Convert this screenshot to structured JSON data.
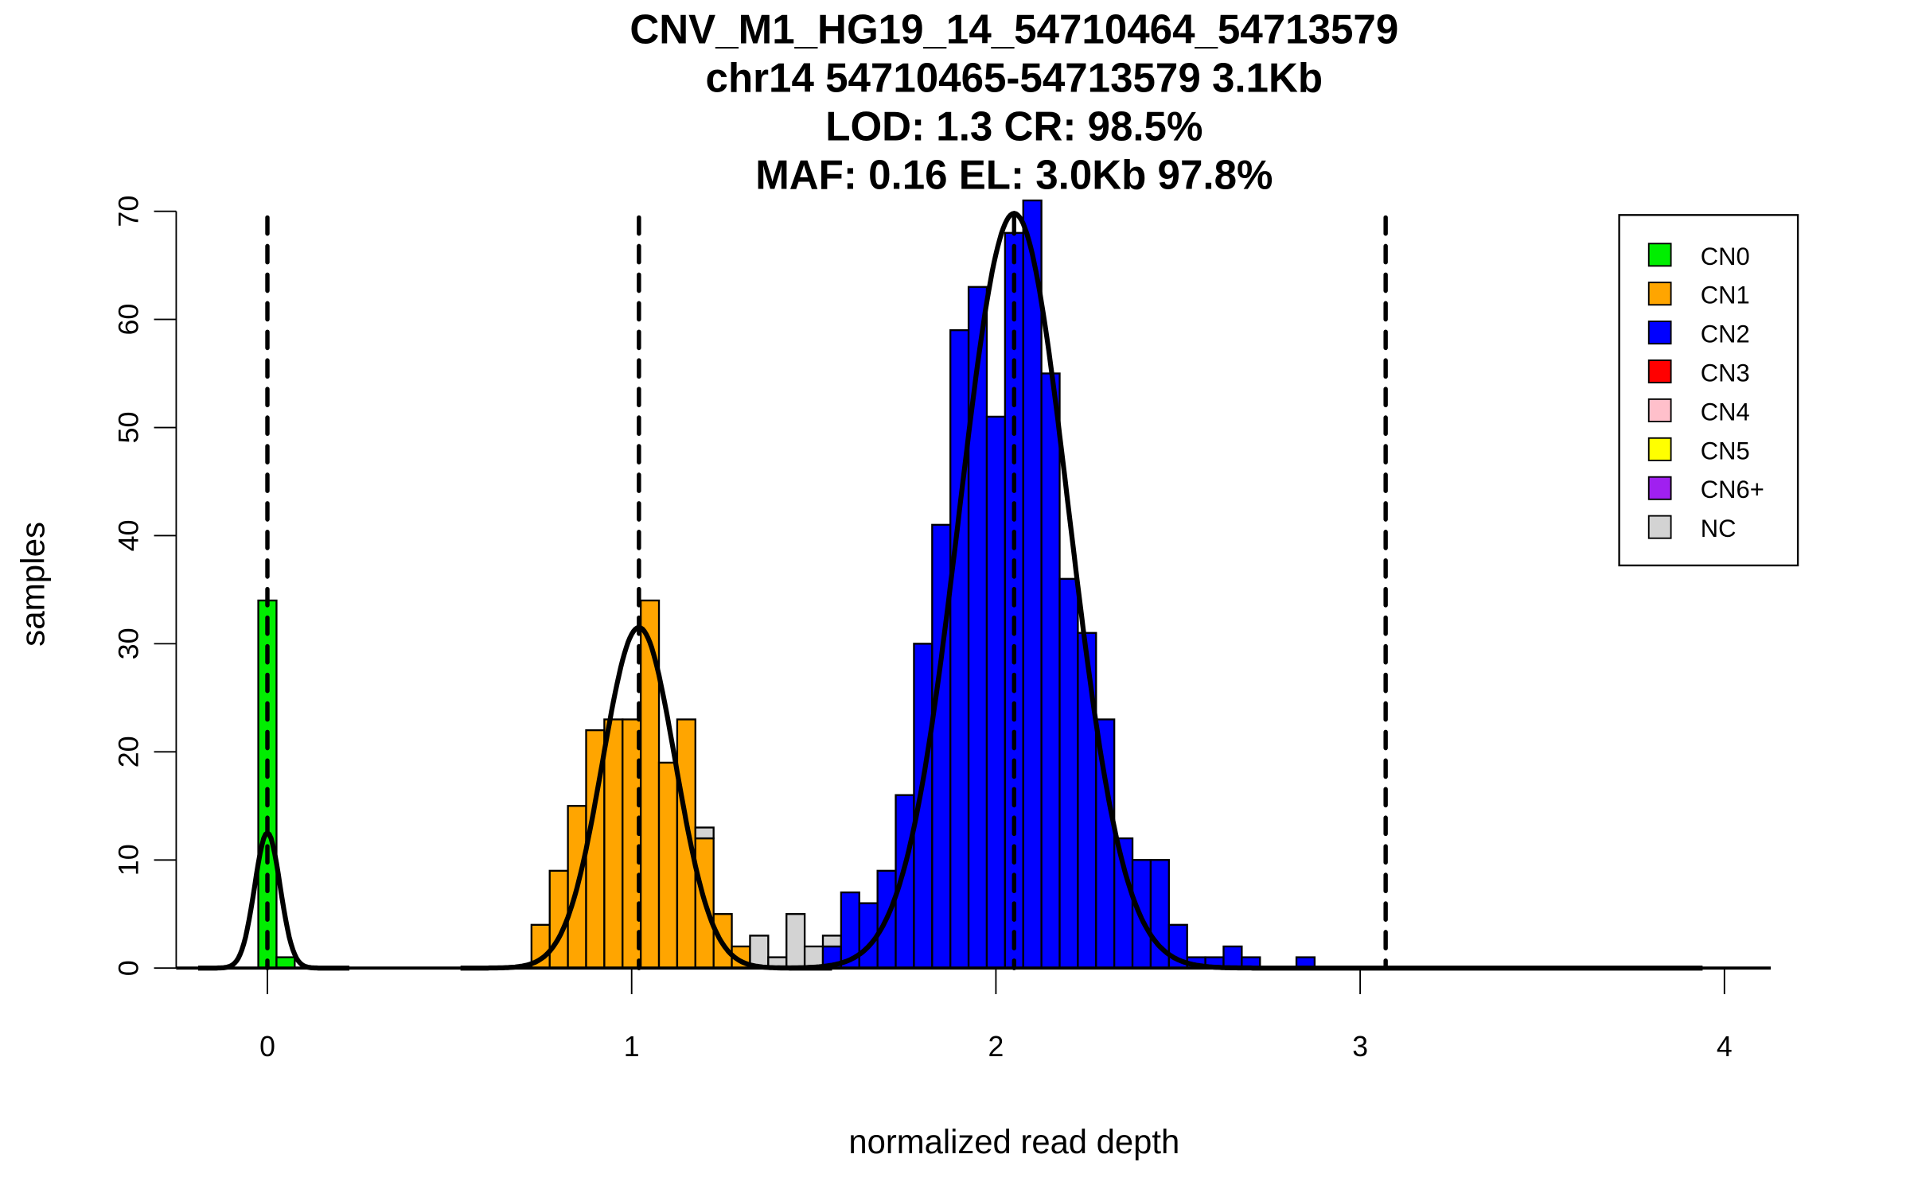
{
  "chart_data": {
    "type": "bar",
    "title_lines": [
      "CNV_M1_HG19_14_54710464_54713579",
      "chr14 54710465-54713579 3.1Kb",
      "LOD: 1.3 CR: 98.5%",
      "MAF: 0.16 EL: 3.0Kb 97.8%"
    ],
    "xlabel": "normalized read depth",
    "ylabel": "samples",
    "xlim": [
      -0.19,
      4.12
    ],
    "ylim": [
      0,
      70
    ],
    "xticks": [
      "0",
      "1",
      "2",
      "3",
      "4"
    ],
    "yticks": [
      "0",
      "10",
      "20",
      "30",
      "40",
      "50",
      "60",
      "70"
    ],
    "bin_width": 0.05,
    "bin_starts": [
      -0.025,
      0.025,
      0.725,
      0.775,
      0.825,
      0.875,
      0.925,
      0.975,
      1.025,
      1.075,
      1.125,
      1.175,
      1.225,
      1.275,
      1.325,
      1.375,
      1.425,
      1.475,
      1.525,
      1.575,
      1.625,
      1.675,
      1.725,
      1.775,
      1.825,
      1.875,
      1.925,
      1.975,
      2.025,
      2.075,
      2.125,
      2.175,
      2.225,
      2.275,
      2.325,
      2.375,
      2.425,
      2.475,
      2.525,
      2.575,
      2.625,
      2.675,
      2.825
    ],
    "series": [
      {
        "name": "CN0",
        "color": "#00ee00",
        "values": [
          34,
          1,
          0,
          0,
          0,
          0,
          0,
          0,
          0,
          0,
          0,
          0,
          0,
          0,
          0,
          0,
          0,
          0,
          0,
          0,
          0,
          0,
          0,
          0,
          0,
          0,
          0,
          0,
          0,
          0,
          0,
          0,
          0,
          0,
          0,
          0,
          0,
          0,
          0,
          0,
          0,
          0,
          0
        ]
      },
      {
        "name": "CN1",
        "color": "#ffa500",
        "values": [
          0,
          0,
          4,
          9,
          15,
          22,
          23,
          23,
          34,
          19,
          23,
          12,
          5,
          2,
          0,
          0,
          0,
          0,
          0,
          0,
          0,
          0,
          0,
          0,
          0,
          0,
          0,
          0,
          0,
          0,
          0,
          0,
          0,
          0,
          0,
          0,
          0,
          0,
          0,
          0,
          0,
          0,
          0
        ]
      },
      {
        "name": "CN2",
        "color": "#0000ff",
        "values": [
          0,
          0,
          0,
          0,
          0,
          0,
          0,
          0,
          0,
          0,
          0,
          0,
          0,
          0,
          0,
          0,
          0,
          0,
          2,
          7,
          6,
          9,
          16,
          30,
          41,
          59,
          63,
          51,
          68,
          71,
          55,
          36,
          31,
          23,
          12,
          10,
          10,
          4,
          1,
          1,
          2,
          1,
          1
        ]
      },
      {
        "name": "CN3",
        "color": "#ff0000",
        "values": []
      },
      {
        "name": "CN4",
        "color": "#ffc0cb",
        "values": []
      },
      {
        "name": "CN5",
        "color": "#ffff00",
        "values": []
      },
      {
        "name": "CN6+",
        "color": "#a020f0",
        "values": []
      },
      {
        "name": "NC",
        "color": "#d3d3d3",
        "values": [
          0,
          0,
          0,
          0,
          0,
          0,
          0,
          0,
          0,
          0,
          0,
          1,
          0,
          0,
          3,
          1,
          5,
          2,
          1,
          0,
          0,
          0,
          0,
          0,
          0,
          0,
          0,
          0,
          0,
          0,
          0,
          0,
          0,
          0,
          0,
          0,
          0,
          0,
          0,
          0,
          0,
          0,
          0
        ]
      }
    ],
    "fitted_components": [
      {
        "mean": 0.0,
        "peak": 12.5,
        "sd": 0.035
      },
      {
        "mean": 1.02,
        "peak": 31.5,
        "sd": 0.1
      },
      {
        "mean": 2.05,
        "peak": 69.8,
        "sd": 0.15
      }
    ],
    "dashed_lines_x": [
      0.0,
      1.02,
      2.05,
      3.07
    ],
    "legend_placement": "top-right",
    "grid": false
  }
}
